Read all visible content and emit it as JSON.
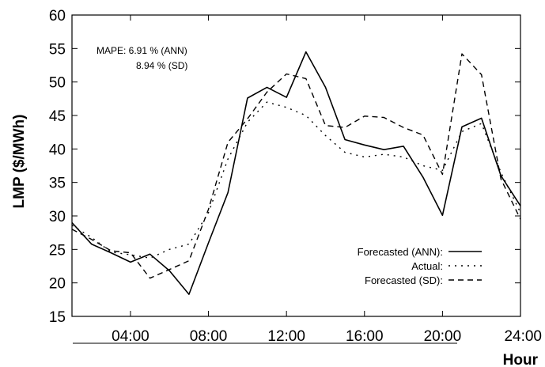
{
  "chart_data": {
    "type": "line",
    "title": "",
    "xlabel": "Hour",
    "ylabel": "LMP ($/MWh)",
    "xlim": [
      1,
      24
    ],
    "ylim": [
      15,
      60
    ],
    "x": [
      1,
      2,
      3,
      4,
      5,
      6,
      7,
      8,
      9,
      10,
      11,
      12,
      13,
      14,
      15,
      16,
      17,
      18,
      19,
      20,
      21,
      22,
      23,
      24
    ],
    "x_ticks": [
      4,
      8,
      12,
      16,
      20,
      24
    ],
    "x_tick_labels": [
      "04:00",
      "08:00",
      "12:00",
      "16:00",
      "20:00",
      "24:00"
    ],
    "y_ticks": [
      15,
      20,
      25,
      30,
      35,
      40,
      45,
      50,
      55,
      60
    ],
    "y_tick_labels": [
      "15",
      "20",
      "25",
      "30",
      "35",
      "40",
      "45",
      "50",
      "55",
      "60"
    ],
    "grid": false,
    "legend_position": "bottom-right",
    "annotation": {
      "line1": "MAPE: 6.91 % (ANN)",
      "line2": "8.94 % (SD)"
    },
    "series": [
      {
        "name": "Forecasted (ANN):",
        "style": "solid",
        "values": [
          29.0,
          25.8,
          24.5,
          23.1,
          24.3,
          21.8,
          18.3,
          26.0,
          33.5,
          47.6,
          49.2,
          47.7,
          54.5,
          49.2,
          41.4,
          40.6,
          39.9,
          40.4,
          35.8,
          30.1,
          43.3,
          44.6,
          36.0,
          31.5
        ]
      },
      {
        "name": "Actual:",
        "style": "dotted",
        "values": [
          28.6,
          26.8,
          24.6,
          24.2,
          23.7,
          25.0,
          25.8,
          30.5,
          38.5,
          44.0,
          47.0,
          46.2,
          45.0,
          42.0,
          39.5,
          38.8,
          39.2,
          38.8,
          37.5,
          36.8,
          42.6,
          43.8,
          36.5,
          30.5
        ]
      },
      {
        "name": "Forecasted (SD):",
        "style": "dashed",
        "values": [
          28.0,
          26.5,
          24.8,
          24.5,
          20.7,
          22.0,
          23.3,
          31.0,
          41.0,
          44.5,
          48.5,
          51.2,
          50.5,
          43.5,
          43.2,
          44.9,
          44.7,
          43.2,
          42.1,
          36.2,
          54.2,
          51.1,
          35.5,
          29.5
        ]
      }
    ]
  },
  "colors": {
    "line": "#000000",
    "background": "#ffffff"
  }
}
